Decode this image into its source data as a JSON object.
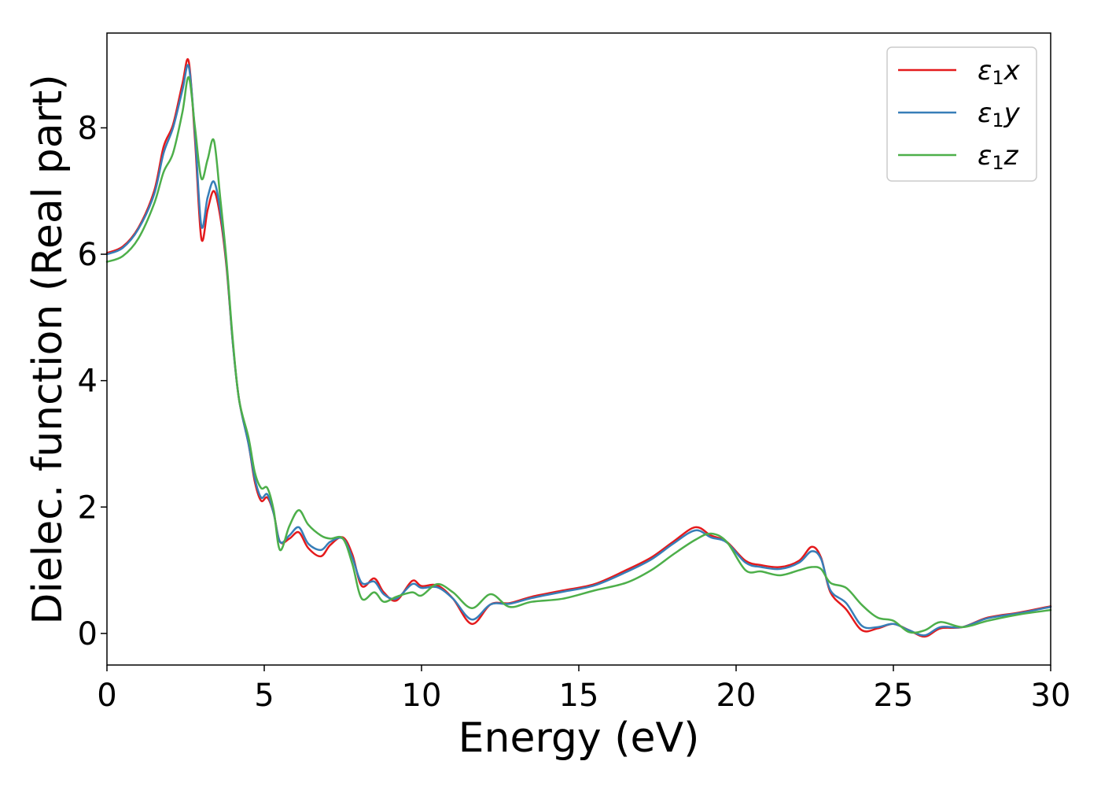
{
  "chart_data": {
    "type": "line",
    "xlabel": "Energy (eV)",
    "ylabel": "Dielec. function (Real part)",
    "xlim": [
      0,
      30
    ],
    "ylim": [
      -0.5,
      9.5
    ],
    "xticks": [
      0,
      5,
      10,
      15,
      20,
      25,
      30
    ],
    "xtick_labels": [
      "0",
      "5",
      "10",
      "15",
      "20",
      "25",
      "30"
    ],
    "yticks": [
      0,
      2,
      4,
      6,
      8
    ],
    "ytick_labels": [
      "0",
      "2",
      "4",
      "6",
      "8"
    ],
    "grid": false,
    "legend_position": "top-right",
    "series": [
      {
        "name": "ε1x",
        "legend_base": "ε",
        "legend_sub": "1",
        "legend_var": "x",
        "color": "#e41a1c",
        "points": [
          [
            0,
            6.02
          ],
          [
            0.5,
            6.12
          ],
          [
            1.0,
            6.42
          ],
          [
            1.5,
            7.0
          ],
          [
            1.8,
            7.7
          ],
          [
            2.1,
            8.05
          ],
          [
            2.4,
            8.7
          ],
          [
            2.6,
            9.05
          ],
          [
            2.8,
            7.8
          ],
          [
            3.0,
            6.25
          ],
          [
            3.2,
            6.7
          ],
          [
            3.4,
            7.0
          ],
          [
            3.6,
            6.6
          ],
          [
            3.8,
            5.8
          ],
          [
            4.0,
            4.6
          ],
          [
            4.2,
            3.7
          ],
          [
            4.5,
            3.0
          ],
          [
            4.7,
            2.4
          ],
          [
            4.9,
            2.1
          ],
          [
            5.1,
            2.15
          ],
          [
            5.3,
            1.9
          ],
          [
            5.5,
            1.45
          ],
          [
            5.8,
            1.5
          ],
          [
            6.1,
            1.6
          ],
          [
            6.4,
            1.35
          ],
          [
            6.8,
            1.22
          ],
          [
            7.1,
            1.4
          ],
          [
            7.5,
            1.52
          ],
          [
            7.8,
            1.25
          ],
          [
            8.1,
            0.75
          ],
          [
            8.5,
            0.87
          ],
          [
            8.8,
            0.65
          ],
          [
            9.2,
            0.52
          ],
          [
            9.7,
            0.83
          ],
          [
            10.0,
            0.75
          ],
          [
            10.5,
            0.76
          ],
          [
            11.0,
            0.55
          ],
          [
            11.6,
            0.15
          ],
          [
            12.2,
            0.46
          ],
          [
            12.8,
            0.48
          ],
          [
            13.5,
            0.58
          ],
          [
            14.5,
            0.68
          ],
          [
            15.5,
            0.78
          ],
          [
            16.5,
            1.0
          ],
          [
            17.3,
            1.2
          ],
          [
            18.0,
            1.45
          ],
          [
            18.7,
            1.68
          ],
          [
            19.2,
            1.55
          ],
          [
            19.7,
            1.45
          ],
          [
            20.3,
            1.15
          ],
          [
            20.8,
            1.08
          ],
          [
            21.4,
            1.05
          ],
          [
            22.0,
            1.15
          ],
          [
            22.4,
            1.37
          ],
          [
            22.7,
            1.2
          ],
          [
            23.0,
            0.65
          ],
          [
            23.5,
            0.38
          ],
          [
            24.0,
            0.05
          ],
          [
            24.5,
            0.08
          ],
          [
            25.0,
            0.15
          ],
          [
            25.5,
            0.05
          ],
          [
            26.0,
            -0.05
          ],
          [
            26.5,
            0.08
          ],
          [
            27.2,
            0.1
          ],
          [
            28.0,
            0.25
          ],
          [
            29.0,
            0.33
          ],
          [
            30.0,
            0.43
          ]
        ]
      },
      {
        "name": "ε1y",
        "legend_base": "ε",
        "legend_sub": "1",
        "legend_var": "y",
        "color": "#377eb8",
        "points": [
          [
            0,
            6.0
          ],
          [
            0.5,
            6.1
          ],
          [
            1.0,
            6.4
          ],
          [
            1.5,
            6.95
          ],
          [
            1.8,
            7.6
          ],
          [
            2.1,
            8.0
          ],
          [
            2.4,
            8.6
          ],
          [
            2.6,
            8.97
          ],
          [
            2.8,
            7.9
          ],
          [
            3.0,
            6.45
          ],
          [
            3.2,
            6.9
          ],
          [
            3.4,
            7.15
          ],
          [
            3.6,
            6.7
          ],
          [
            3.8,
            5.85
          ],
          [
            4.0,
            4.6
          ],
          [
            4.2,
            3.7
          ],
          [
            4.5,
            3.0
          ],
          [
            4.7,
            2.45
          ],
          [
            4.9,
            2.15
          ],
          [
            5.1,
            2.2
          ],
          [
            5.3,
            1.9
          ],
          [
            5.5,
            1.45
          ],
          [
            5.8,
            1.55
          ],
          [
            6.1,
            1.68
          ],
          [
            6.4,
            1.42
          ],
          [
            6.8,
            1.32
          ],
          [
            7.1,
            1.45
          ],
          [
            7.5,
            1.5
          ],
          [
            7.8,
            1.2
          ],
          [
            8.1,
            0.8
          ],
          [
            8.5,
            0.82
          ],
          [
            8.8,
            0.62
          ],
          [
            9.2,
            0.55
          ],
          [
            9.7,
            0.78
          ],
          [
            10.0,
            0.72
          ],
          [
            10.5,
            0.73
          ],
          [
            11.0,
            0.55
          ],
          [
            11.6,
            0.22
          ],
          [
            12.2,
            0.46
          ],
          [
            12.8,
            0.47
          ],
          [
            13.5,
            0.56
          ],
          [
            14.5,
            0.66
          ],
          [
            15.5,
            0.76
          ],
          [
            16.5,
            0.97
          ],
          [
            17.3,
            1.17
          ],
          [
            18.0,
            1.42
          ],
          [
            18.7,
            1.63
          ],
          [
            19.2,
            1.52
          ],
          [
            19.7,
            1.44
          ],
          [
            20.3,
            1.12
          ],
          [
            20.8,
            1.05
          ],
          [
            21.4,
            1.02
          ],
          [
            22.0,
            1.12
          ],
          [
            22.4,
            1.3
          ],
          [
            22.7,
            1.18
          ],
          [
            23.0,
            0.68
          ],
          [
            23.5,
            0.48
          ],
          [
            24.0,
            0.12
          ],
          [
            24.5,
            0.1
          ],
          [
            25.0,
            0.15
          ],
          [
            25.5,
            0.05
          ],
          [
            26.0,
            -0.03
          ],
          [
            26.5,
            0.1
          ],
          [
            27.2,
            0.1
          ],
          [
            28.0,
            0.24
          ],
          [
            29.0,
            0.32
          ],
          [
            30.0,
            0.42
          ]
        ]
      },
      {
        "name": "ε1z",
        "legend_base": "ε",
        "legend_sub": "1",
        "legend_var": "z",
        "color": "#4daf4a",
        "points": [
          [
            0,
            5.88
          ],
          [
            0.5,
            5.97
          ],
          [
            1.0,
            6.25
          ],
          [
            1.5,
            6.8
          ],
          [
            1.8,
            7.3
          ],
          [
            2.1,
            7.6
          ],
          [
            2.4,
            8.25
          ],
          [
            2.6,
            8.8
          ],
          [
            2.8,
            8.0
          ],
          [
            3.0,
            7.2
          ],
          [
            3.2,
            7.5
          ],
          [
            3.4,
            7.8
          ],
          [
            3.6,
            6.9
          ],
          [
            3.8,
            5.9
          ],
          [
            4.0,
            4.65
          ],
          [
            4.2,
            3.7
          ],
          [
            4.5,
            3.1
          ],
          [
            4.7,
            2.55
          ],
          [
            4.9,
            2.3
          ],
          [
            5.1,
            2.3
          ],
          [
            5.3,
            1.95
          ],
          [
            5.5,
            1.32
          ],
          [
            5.8,
            1.7
          ],
          [
            6.1,
            1.95
          ],
          [
            6.4,
            1.72
          ],
          [
            6.8,
            1.55
          ],
          [
            7.1,
            1.5
          ],
          [
            7.5,
            1.5
          ],
          [
            7.8,
            1.1
          ],
          [
            8.1,
            0.55
          ],
          [
            8.5,
            0.65
          ],
          [
            8.8,
            0.5
          ],
          [
            9.2,
            0.58
          ],
          [
            9.7,
            0.65
          ],
          [
            10.0,
            0.6
          ],
          [
            10.5,
            0.78
          ],
          [
            11.0,
            0.65
          ],
          [
            11.6,
            0.4
          ],
          [
            12.2,
            0.62
          ],
          [
            12.8,
            0.42
          ],
          [
            13.5,
            0.5
          ],
          [
            14.5,
            0.55
          ],
          [
            15.5,
            0.68
          ],
          [
            16.5,
            0.8
          ],
          [
            17.3,
            1.0
          ],
          [
            18.0,
            1.25
          ],
          [
            18.7,
            1.48
          ],
          [
            19.2,
            1.58
          ],
          [
            19.7,
            1.45
          ],
          [
            20.3,
            1.0
          ],
          [
            20.8,
            0.98
          ],
          [
            21.4,
            0.92
          ],
          [
            22.0,
            1.0
          ],
          [
            22.4,
            1.05
          ],
          [
            22.7,
            1.02
          ],
          [
            23.0,
            0.8
          ],
          [
            23.5,
            0.72
          ],
          [
            24.0,
            0.45
          ],
          [
            24.5,
            0.25
          ],
          [
            25.0,
            0.2
          ],
          [
            25.5,
            0.02
          ],
          [
            26.0,
            0.05
          ],
          [
            26.5,
            0.18
          ],
          [
            27.2,
            0.1
          ],
          [
            28.0,
            0.2
          ],
          [
            29.0,
            0.3
          ],
          [
            30.0,
            0.37
          ]
        ]
      }
    ]
  }
}
